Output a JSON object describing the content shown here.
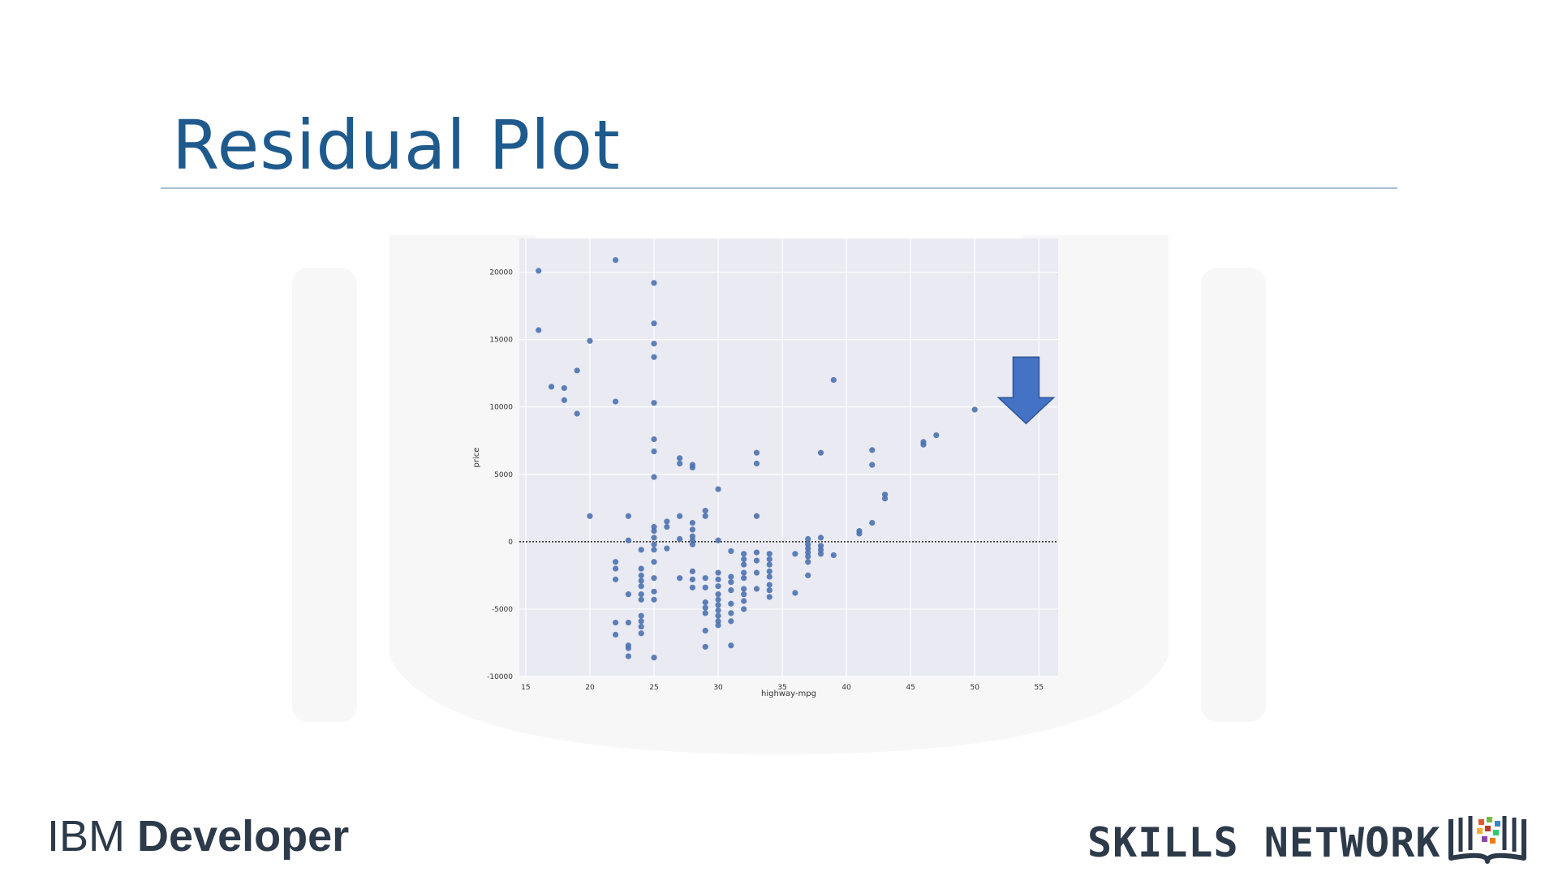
{
  "slide": {
    "title": "Residual Plot"
  },
  "branding": {
    "ibm_part1": "IBM ",
    "ibm_part2": "Developer",
    "skills_network": "SKILLS NETWORK"
  },
  "colors": {
    "title": "#1f5a8c",
    "plot_bg": "#eaeaf2",
    "grid": "#ffffff",
    "point": "#4c72b0",
    "arrow": "#4472c4",
    "zero_line": "#222222"
  },
  "annotation": {
    "type": "down-arrow",
    "points_to_x": 54
  },
  "chart_data": {
    "type": "scatter",
    "title": "",
    "xlabel": "highway-mpg",
    "ylabel": "price",
    "xlim": [
      14.5,
      56.5
    ],
    "ylim": [
      -10000,
      22500
    ],
    "xticks": [
      15,
      20,
      25,
      30,
      35,
      40,
      45,
      50,
      55
    ],
    "yticks": [
      -10000,
      -5000,
      0,
      5000,
      10000,
      15000,
      20000
    ],
    "grid": true,
    "reference_line": {
      "y": 0,
      "style": "dotted"
    },
    "points": [
      [
        16,
        20100
      ],
      [
        16,
        15700
      ],
      [
        17,
        11500
      ],
      [
        18,
        11400
      ],
      [
        18,
        10500
      ],
      [
        19,
        12700
      ],
      [
        19,
        9500
      ],
      [
        20,
        14900
      ],
      [
        20,
        1900
      ],
      [
        22,
        20900
      ],
      [
        22,
        10400
      ],
      [
        22,
        -1500
      ],
      [
        22,
        -2000
      ],
      [
        22,
        -2800
      ],
      [
        22,
        -6000
      ],
      [
        22,
        -6900
      ],
      [
        23,
        1900
      ],
      [
        23,
        100
      ],
      [
        23,
        -3900
      ],
      [
        23,
        -6000
      ],
      [
        23,
        -7700
      ],
      [
        23,
        -7900
      ],
      [
        23,
        -8500
      ],
      [
        24,
        -600
      ],
      [
        24,
        -2000
      ],
      [
        24,
        -2500
      ],
      [
        24,
        -2900
      ],
      [
        24,
        -3300
      ],
      [
        24,
        -3900
      ],
      [
        24,
        -4300
      ],
      [
        24,
        -5500
      ],
      [
        24,
        -5900
      ],
      [
        24,
        -6300
      ],
      [
        24,
        -6800
      ],
      [
        25,
        19200
      ],
      [
        25,
        16200
      ],
      [
        25,
        14700
      ],
      [
        25,
        13700
      ],
      [
        25,
        10300
      ],
      [
        25,
        7600
      ],
      [
        25,
        6700
      ],
      [
        25,
        4800
      ],
      [
        25,
        1100
      ],
      [
        25,
        800
      ],
      [
        25,
        300
      ],
      [
        25,
        -200
      ],
      [
        25,
        -600
      ],
      [
        25,
        -1500
      ],
      [
        25,
        -2700
      ],
      [
        25,
        -3700
      ],
      [
        25,
        -4300
      ],
      [
        25,
        -8600
      ],
      [
        26,
        1500
      ],
      [
        26,
        1100
      ],
      [
        26,
        -500
      ],
      [
        27,
        6200
      ],
      [
        27,
        5800
      ],
      [
        27,
        1900
      ],
      [
        27,
        200
      ],
      [
        27,
        -2700
      ],
      [
        28,
        5700
      ],
      [
        28,
        5500
      ],
      [
        28,
        1400
      ],
      [
        28,
        900
      ],
      [
        28,
        400
      ],
      [
        28,
        100
      ],
      [
        28,
        -200
      ],
      [
        28,
        -2200
      ],
      [
        28,
        -2800
      ],
      [
        28,
        -3400
      ],
      [
        29,
        2300
      ],
      [
        29,
        1900
      ],
      [
        29,
        -2700
      ],
      [
        29,
        -3400
      ],
      [
        29,
        -4500
      ],
      [
        29,
        -4900
      ],
      [
        29,
        -5300
      ],
      [
        29,
        -6600
      ],
      [
        29,
        -7800
      ],
      [
        30,
        3900
      ],
      [
        30,
        100
      ],
      [
        30,
        -2300
      ],
      [
        30,
        -2800
      ],
      [
        30,
        -3300
      ],
      [
        30,
        -3900
      ],
      [
        30,
        -4300
      ],
      [
        30,
        -4700
      ],
      [
        30,
        -5100
      ],
      [
        30,
        -5500
      ],
      [
        30,
        -5900
      ],
      [
        30,
        -6200
      ],
      [
        31,
        -700
      ],
      [
        31,
        -2600
      ],
      [
        31,
        -3000
      ],
      [
        31,
        -3600
      ],
      [
        31,
        -4600
      ],
      [
        31,
        -5300
      ],
      [
        31,
        -5900
      ],
      [
        31,
        -7700
      ],
      [
        32,
        -900
      ],
      [
        32,
        -1300
      ],
      [
        32,
        -1700
      ],
      [
        32,
        -2300
      ],
      [
        32,
        -2700
      ],
      [
        32,
        -3500
      ],
      [
        32,
        -3900
      ],
      [
        32,
        -4400
      ],
      [
        32,
        -5000
      ],
      [
        33,
        6600
      ],
      [
        33,
        5800
      ],
      [
        33,
        1900
      ],
      [
        33,
        -800
      ],
      [
        33,
        -1400
      ],
      [
        33,
        -2300
      ],
      [
        33,
        -3500
      ],
      [
        34,
        -900
      ],
      [
        34,
        -1300
      ],
      [
        34,
        -1700
      ],
      [
        34,
        -2200
      ],
      [
        34,
        -2600
      ],
      [
        34,
        -3200
      ],
      [
        34,
        -3600
      ],
      [
        34,
        -4100
      ],
      [
        36,
        -900
      ],
      [
        36,
        -3800
      ],
      [
        37,
        200
      ],
      [
        37,
        -200
      ],
      [
        37,
        -500
      ],
      [
        37,
        -800
      ],
      [
        37,
        -1100
      ],
      [
        37,
        -1500
      ],
      [
        37,
        -2500
      ],
      [
        38,
        6600
      ],
      [
        38,
        300
      ],
      [
        38,
        -300
      ],
      [
        38,
        -600
      ],
      [
        38,
        -900
      ],
      [
        39,
        12000
      ],
      [
        39,
        -1000
      ],
      [
        41,
        800
      ],
      [
        41,
        600
      ],
      [
        42,
        6800
      ],
      [
        42,
        5700
      ],
      [
        42,
        1400
      ],
      [
        43,
        3500
      ],
      [
        43,
        3200
      ],
      [
        46,
        7400
      ],
      [
        46,
        7200
      ],
      [
        47,
        7900
      ],
      [
        50,
        9800
      ]
    ]
  }
}
